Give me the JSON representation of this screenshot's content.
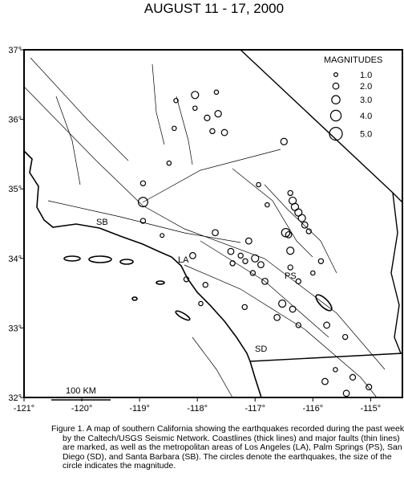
{
  "chart_data": {
    "type": "scatter",
    "title": "AUGUST 11 - 17, 2000",
    "xlim": [
      -121,
      -114.45
    ],
    "ylim": [
      32,
      37
    ],
    "xticks": [
      {
        "value": -121,
        "label": "-121°"
      },
      {
        "value": -120,
        "label": "-120°"
      },
      {
        "value": -119,
        "label": "-119°"
      },
      {
        "value": -118,
        "label": "-118°"
      },
      {
        "value": -117,
        "label": "-117°"
      },
      {
        "value": -116,
        "label": "-116°"
      },
      {
        "value": -115,
        "label": "-115°"
      }
    ],
    "yticks": [
      {
        "value": 32,
        "label": "32°"
      },
      {
        "value": 33,
        "label": "33°"
      },
      {
        "value": 34,
        "label": "34°"
      },
      {
        "value": 35,
        "label": "35°"
      },
      {
        "value": 36,
        "label": "36°"
      },
      {
        "value": 37,
        "label": "37°"
      }
    ],
    "legend": {
      "title": "MAGNITUDES",
      "sizes": [
        {
          "value": 1,
          "label": "1.0"
        },
        {
          "value": 2,
          "label": "2.0"
        },
        {
          "value": 3,
          "label": "3.0"
        },
        {
          "value": 4,
          "label": "4.0"
        },
        {
          "value": 5,
          "label": "5.0"
        }
      ]
    },
    "place_labels": [
      "SB",
      "LA",
      "PS",
      "SD"
    ],
    "scale_label": "100 KM",
    "caption": "Figure 1. A map of southern California showing the earthquakes recorded during the past week by the Caltech/USGS Seismic Network.  Coastlines (thick lines) and major faults (thin lines) are marked, as well as the metropolitan areas of Los Angeles (LA), Palm Springs (PS), San Diego (SD), and Santa Barbara (SB).  The circles denote the earthquakes, the size of the circle indicates the magnitude.",
    "series": [
      {
        "color": "#000000",
        "x": [
          -118.04,
          -118.37,
          -118.04,
          -117.83,
          -117.64,
          -117.53,
          -117.74,
          -118.4,
          -117.67,
          -116.5,
          -118.49,
          -118.94,
          -118.94,
          -118.94,
          -116.39,
          -116.35,
          -116.31,
          -116.25,
          -116.19,
          -116.14,
          -116.07,
          -116.42,
          -116.47,
          -116.94,
          -116.79,
          -117.69,
          -118.61,
          -118.08,
          -117.42,
          -117.25,
          -117.39,
          -117.17,
          -117.0,
          -116.9,
          -117.04,
          -116.83,
          -116.39,
          -116.0,
          -116.25,
          -116.53,
          -116.35,
          -116.25,
          -116.62,
          -117.18,
          -117.11,
          -117.86,
          -117.94,
          -115.76,
          -115.44,
          -115.61,
          -115.79,
          -115.31,
          -115.03,
          -115.42,
          -115.86,
          -116.39,
          -118.19
        ],
        "values": [
          36.35,
          36.27,
          36.16,
          36.02,
          36.08,
          35.81,
          35.83,
          35.87,
          36.39,
          35.68,
          35.37,
          34.81,
          35.08,
          34.54,
          34.94,
          34.83,
          34.74,
          34.66,
          34.58,
          34.48,
          34.39,
          34.34,
          34.37,
          35.06,
          34.77,
          34.37,
          34.33,
          34.04,
          34.1,
          34.04,
          33.93,
          33.96,
          34.0,
          33.91,
          33.79,
          33.67,
          34.11,
          33.79,
          33.67,
          33.35,
          33.27,
          33.04,
          33.15,
          33.3,
          34.25,
          33.62,
          33.35,
          33.04,
          32.87,
          32.4,
          32.23,
          32.29,
          32.15,
          32.06,
          33.96,
          33.87,
          33.7
        ],
        "sizes": [
          2.5,
          1.2,
          1.2,
          1.8,
          2.2,
          2.0,
          1.5,
          1.2,
          1.2,
          2.2,
          1.2,
          3.5,
          1.5,
          1.5,
          1.5,
          2.5,
          2.5,
          2.5,
          2.5,
          2.0,
          1.5,
          2.0,
          3.0,
          1.2,
          1.2,
          2.0,
          1.0,
          2.0,
          2.0,
          1.5,
          1.5,
          1.5,
          2.5,
          2.0,
          1.5,
          2.0,
          2.5,
          1.2,
          1.5,
          2.5,
          2.0,
          1.5,
          2.0,
          1.5,
          2.0,
          1.5,
          1.2,
          2.0,
          1.5,
          1.2,
          2.0,
          1.8,
          1.8,
          2.0,
          1.5,
          1.5,
          1.5
        ]
      }
    ]
  }
}
